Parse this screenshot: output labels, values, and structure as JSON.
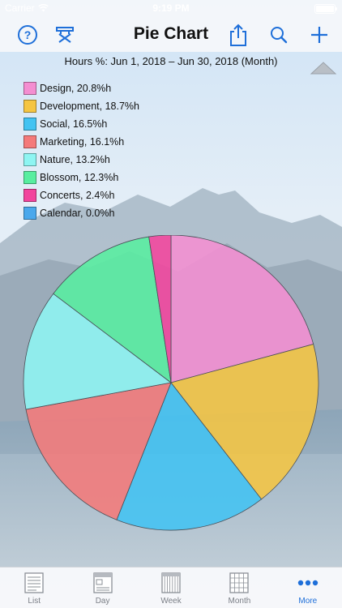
{
  "status_bar": {
    "carrier": "Carrier",
    "time": "9:19 PM"
  },
  "navbar": {
    "title": "Pie Chart"
  },
  "chart_subtitle": "Hours %: Jun 1, 2018 – Jun 30, 2018 (Month)",
  "chart_data": {
    "type": "pie",
    "categories": [
      "Design",
      "Development",
      "Social",
      "Marketing",
      "Nature",
      "Blossom",
      "Concerts",
      "Calendar"
    ],
    "values": [
      20.8,
      18.7,
      16.5,
      16.1,
      13.2,
      12.3,
      2.4,
      0.0
    ],
    "legend_labels": [
      "Design, 20.8%h",
      "Development, 18.7%h",
      "Social, 16.5%h",
      "Marketing, 16.1%h",
      "Nature, 13.2%h",
      "Blossom, 12.3%h",
      "Concerts, 2.4%h",
      "Calendar, 0.0%h"
    ],
    "colors": [
      "#f48ed1",
      "#f5c542",
      "#42c3f2",
      "#f47a7a",
      "#8ef5f2",
      "#58eea0",
      "#f2449d",
      "#4aa8ec"
    ],
    "legend_position": "top-left"
  },
  "tabs": [
    {
      "label": "List",
      "icon": "list-icon",
      "active": false
    },
    {
      "label": "Day",
      "icon": "day-icon",
      "active": false
    },
    {
      "label": "Week",
      "icon": "week-icon",
      "active": false
    },
    {
      "label": "Month",
      "icon": "month-icon",
      "active": false
    },
    {
      "label": "More",
      "icon": "more-icon",
      "active": true
    }
  ]
}
